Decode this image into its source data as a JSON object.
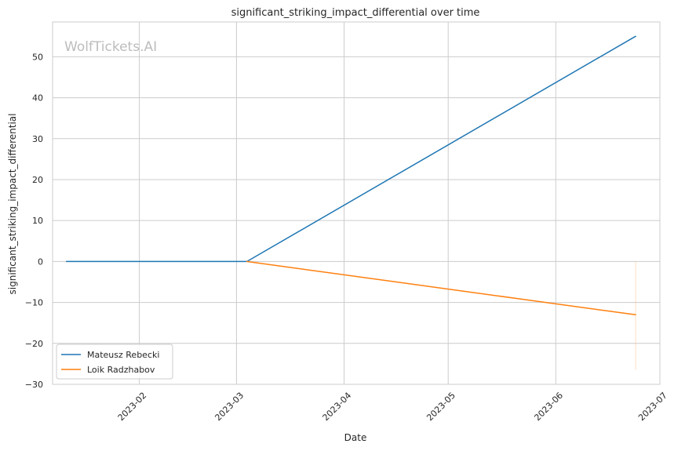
{
  "chart_data": {
    "type": "line",
    "title": "significant_striking_impact_differential over time",
    "xlabel": "Date",
    "ylabel": "significant_striking_impact_differential",
    "watermark": "WolfTickets.AI",
    "x_ticks": [
      "2023-02",
      "2023-03",
      "2023-04",
      "2023-05",
      "2023-06",
      "2023-07"
    ],
    "y_ticks": [
      "−30",
      "−20",
      "−10",
      "0",
      "10",
      "20",
      "30",
      "40",
      "50"
    ],
    "ylim": [
      -30,
      58.5
    ],
    "xlim": [
      "2023-01-07",
      "2023-07-01"
    ],
    "grid": true,
    "legend_position": "lower-left",
    "series": [
      {
        "name": "Mateusz Rebecki",
        "color": "#1f77b4",
        "points": [
          {
            "x": "2023-01-11",
            "y": 0
          },
          {
            "x": "2023-03-04",
            "y": 0
          },
          {
            "x": "2023-06-24",
            "y": 55
          }
        ]
      },
      {
        "name": "Loik Radzhabov",
        "color": "#ff7f0e",
        "points": [
          {
            "x": "2023-03-04",
            "y": 0
          },
          {
            "x": "2023-06-24",
            "y": -13
          }
        ],
        "band": {
          "x": "2023-06-24",
          "ymin": -26.5,
          "ymax": 0
        }
      }
    ]
  }
}
